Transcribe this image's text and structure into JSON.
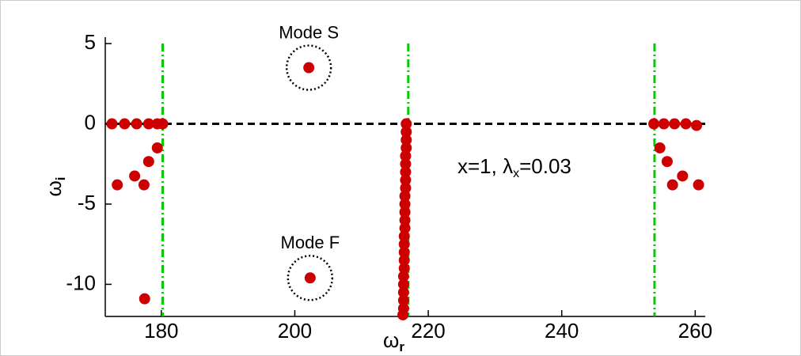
{
  "chart_data": {
    "type": "scatter",
    "x_label": {
      "text": "ω",
      "subscript": "r"
    },
    "y_label": {
      "text": "ω",
      "subscript": "i"
    },
    "annotation": {
      "text": "x=1, λ",
      "subscript": "x",
      "suffix": "=0.03"
    },
    "xlim": [
      171.6,
      261.5
    ],
    "ylim": [
      -12,
      5.4
    ],
    "xticks": [
      180,
      200,
      220,
      240,
      260
    ],
    "yticks": [
      5,
      0,
      -5,
      -10
    ],
    "reference_lines": {
      "y": [
        0
      ],
      "x": [
        180.2,
        217,
        253.9
      ],
      "y_color": "#000000",
      "x_color": "#00cc00"
    },
    "series": [
      {
        "color": "#cc0000",
        "x": [
          172.6,
          174.5,
          176.3,
          178.1,
          179.4,
          180.2,
          179.4,
          178.1,
          176.0,
          173.4,
          177.4,
          177.5,
          216.7,
          216.7,
          216.7,
          216.7,
          216.6,
          216.6,
          216.6,
          216.6,
          216.6,
          216.5,
          216.5,
          216.5,
          216.5,
          216.5,
          216.4,
          216.4,
          216.4,
          216.4,
          216.4,
          216.3,
          216.3,
          216.3,
          216.3,
          216.3,
          216.2,
          253.8,
          255.3,
          256.9,
          258.6,
          260.2,
          254.7,
          255.8,
          256.6,
          258.1,
          260.5
        ],
        "values": [
          0,
          0,
          0,
          0,
          0,
          0,
          -1.5,
          -2.35,
          -3.25,
          -3.8,
          -3.8,
          -10.9,
          0,
          -0.5,
          -1,
          -1.5,
          -2,
          -2.5,
          -3,
          -3.5,
          -4,
          -4.5,
          -5,
          -5.5,
          -6,
          -6.5,
          -7,
          -7.5,
          -8,
          -8.5,
          -9,
          -9.5,
          -10,
          -10.5,
          -11,
          -11.5,
          -11.9,
          0,
          0,
          0,
          0,
          -0.1,
          -1.5,
          -2.35,
          -3.8,
          -3.25,
          -3.8
        ]
      },
      {
        "name": "Mode S",
        "color": "#cc0000",
        "x": [
          202.1
        ],
        "values": [
          3.5
        ],
        "circled": true
      },
      {
        "name": "Mode F",
        "color": "#cc0000",
        "x": [
          202.3
        ],
        "values": [
          -9.6
        ],
        "circled": true
      }
    ]
  }
}
